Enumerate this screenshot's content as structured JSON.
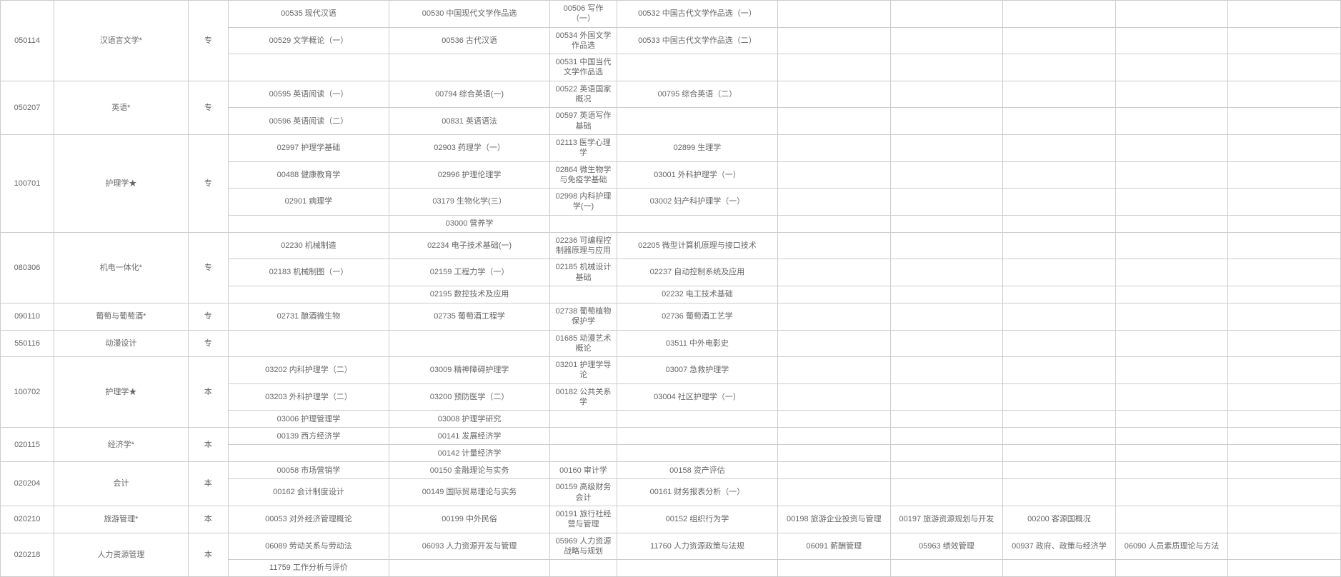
{
  "rows": [
    {
      "code": "050114",
      "major": "汉语言文学*",
      "level": "专",
      "sub": [
        {
          "c1": "00535 现代汉语",
          "c2": "00530 中国现代文学作品选",
          "c3": "00506 写作（一）",
          "c4": "00532 中国古代文学作品选（一）",
          "e1": "",
          "e2": "",
          "e3": "",
          "e4": "",
          "e5": ""
        },
        {
          "c1": "00529 文学概论（一）",
          "c2": "00536 古代汉语",
          "c3": "00534 外国文学作品选",
          "c4": "00533 中国古代文学作品选（二）",
          "e1": "",
          "e2": "",
          "e3": "",
          "e4": "",
          "e5": ""
        },
        {
          "c1": "",
          "c2": "",
          "c3": "00531 中国当代文学作品选",
          "c4": "",
          "e1": "",
          "e2": "",
          "e3": "",
          "e4": "",
          "e5": ""
        }
      ]
    },
    {
      "code": "050207",
      "major": "英语*",
      "level": "专",
      "sub": [
        {
          "c1": "00595 英语阅读（一）",
          "c2": "00794 综合英语(一)",
          "c3": "00522 英语国家概况",
          "c4": "00795 综合英语（二）",
          "e1": "",
          "e2": "",
          "e3": "",
          "e4": "",
          "e5": ""
        },
        {
          "c1": "00596 英语阅读（二）",
          "c2": "00831 英语语法",
          "c3": "00597 英语写作基础",
          "c4": "",
          "e1": "",
          "e2": "",
          "e3": "",
          "e4": "",
          "e5": ""
        }
      ]
    },
    {
      "code": "100701",
      "major": "护理学★",
      "level": "专",
      "sub": [
        {
          "c1": "02997 护理学基础",
          "c2": "02903 药理学（一）",
          "c3": "02113 医学心理学",
          "c4": "02899 生理学",
          "e1": "",
          "e2": "",
          "e3": "",
          "e4": "",
          "e5": ""
        },
        {
          "c1": "00488 健康教育学",
          "c2": "02996 护理伦理学",
          "c3": "02864 微生物学与免疫学基础",
          "c4": "03001 外科护理学（一）",
          "e1": "",
          "e2": "",
          "e3": "",
          "e4": "",
          "e5": ""
        },
        {
          "c1": "02901 病理学",
          "c2": "03179 生物化学(三）",
          "c3": "02998 内科护理学(一)",
          "c4": "03002 妇产科护理学（一）",
          "e1": "",
          "e2": "",
          "e3": "",
          "e4": "",
          "e5": ""
        },
        {
          "c1": "",
          "c2": "03000 营养学",
          "c3": "",
          "c4": "",
          "e1": "",
          "e2": "",
          "e3": "",
          "e4": "",
          "e5": ""
        }
      ]
    },
    {
      "code": "080306",
      "major": "机电一体化*",
      "level": "专",
      "sub": [
        {
          "c1": "02230 机械制造",
          "c2": "02234 电子技术基础(一)",
          "c3": "02236 可编程控制器原理与应用",
          "c4": "02205 微型计算机原理与接口技术",
          "e1": "",
          "e2": "",
          "e3": "",
          "e4": "",
          "e5": ""
        },
        {
          "c1": "02183 机械制图（一）",
          "c2": "02159 工程力学（一）",
          "c3": "02185 机械设计基础",
          "c4": "02237 自动控制系统及应用",
          "e1": "",
          "e2": "",
          "e3": "",
          "e4": "",
          "e5": ""
        },
        {
          "c1": "",
          "c2": "02195 数控技术及应用",
          "c3": "",
          "c4": "02232 电工技术基础",
          "e1": "",
          "e2": "",
          "e3": "",
          "e4": "",
          "e5": ""
        }
      ]
    },
    {
      "code": "090110",
      "major": "葡萄与葡萄酒*",
      "level": "专",
      "sub": [
        {
          "c1": "02731 酿酒微生物",
          "c2": "02735 葡萄酒工程学",
          "c3": "02738 葡萄植物保护学",
          "c4": "02736 葡萄酒工艺学",
          "e1": "",
          "e2": "",
          "e3": "",
          "e4": "",
          "e5": ""
        }
      ]
    },
    {
      "code": "550116",
      "major": "动漫设计",
      "level": "专",
      "sub": [
        {
          "c1": "",
          "c2": "",
          "c3": "01685 动漫艺术概论",
          "c4": "03511 中外电影史",
          "e1": "",
          "e2": "",
          "e3": "",
          "e4": "",
          "e5": ""
        }
      ]
    },
    {
      "code": "100702",
      "major": "护理学★",
      "level": "本",
      "sub": [
        {
          "c1": "03202 内科护理学（二）",
          "c2": "03009 精神障碍护理学",
          "c3": "03201 护理学导论",
          "c4": "03007 急救护理学",
          "e1": "",
          "e2": "",
          "e3": "",
          "e4": "",
          "e5": ""
        },
        {
          "c1": "03203 外科护理学（二）",
          "c2": "03200 预防医学（二）",
          "c3": "00182 公共关系学",
          "c4": "03004 社区护理学（一）",
          "e1": "",
          "e2": "",
          "e3": "",
          "e4": "",
          "e5": ""
        },
        {
          "c1": "03006 护理管理学",
          "c2": "03008 护理学研究",
          "c3": "",
          "c4": "",
          "e1": "",
          "e2": "",
          "e3": "",
          "e4": "",
          "e5": ""
        }
      ]
    },
    {
      "code": "020115",
      "major": "经济学*",
      "level": "本",
      "sub": [
        {
          "c1": "00139 西方经济学",
          "c2": "00141 发展经济学",
          "c3": "",
          "c4": "",
          "e1": "",
          "e2": "",
          "e3": "",
          "e4": "",
          "e5": ""
        },
        {
          "c1": "",
          "c2": "00142 计量经济学",
          "c3": "",
          "c4": "",
          "e1": "",
          "e2": "",
          "e3": "",
          "e4": "",
          "e5": ""
        }
      ]
    },
    {
      "code": "020204",
      "major": "会计",
      "level": "本",
      "sub": [
        {
          "c1": "00058 市场营销学",
          "c2": "00150 金融理论与实务",
          "c3": "00160 审计学",
          "c4": "00158 资产评估",
          "e1": "",
          "e2": "",
          "e3": "",
          "e4": "",
          "e5": ""
        },
        {
          "c1": "00162 会计制度设计",
          "c2": "00149 国际贸易理论与实务",
          "c3": "00159 高级财务会计",
          "c4": "00161 财务报表分析（一）",
          "e1": "",
          "e2": "",
          "e3": "",
          "e4": "",
          "e5": ""
        }
      ]
    },
    {
      "code": "020210",
      "major": "旅游管理*",
      "level": "本",
      "sub": [
        {
          "c1": "00053 对外经济管理概论",
          "c2": "00199 中外民俗",
          "c3": "00191 旅行社经营与管理",
          "c4": "00152 组织行为学",
          "e1": "00198 旅游企业投资与管理",
          "e2": "00197 旅游资源规划与开发",
          "e3": "00200 客源国概况",
          "e4": "",
          "e5": ""
        }
      ]
    },
    {
      "code": "020218",
      "major": "人力资源管理",
      "level": "本",
      "sub": [
        {
          "c1": "06089 劳动关系与劳动法",
          "c2": "06093 人力资源开发与管理",
          "c3": "05969 人力资源战略与规划",
          "c4": "11760 人力资源政策与法规",
          "e1": "06091 薪酬管理",
          "e2": "05963 绩效管理",
          "e3": "00937 政府、政策与经济学",
          "e4": "06090 人员素质理论与方法",
          "e5": ""
        },
        {
          "c1": "11759 工作分析与评价",
          "c2": "",
          "c3": "",
          "c4": "",
          "e1": "",
          "e2": "",
          "e3": "",
          "e4": "",
          "e5": ""
        }
      ]
    }
  ]
}
